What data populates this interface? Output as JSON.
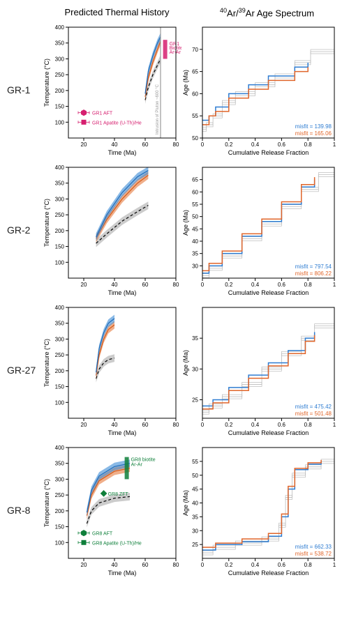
{
  "columns": {
    "left": "Predicted Thermal History",
    "right_html": "<sup>40</sup>Ar/<sup>39</sup>Ar Age Spectrum"
  },
  "rows": [
    "GR-1",
    "GR-2",
    "GR-27",
    "GR-8"
  ],
  "left_axis": {
    "xlabel": "Time (Ma)",
    "ylabel": "Temperature (°C)",
    "xlim": [
      10,
      80
    ],
    "ylim": [
      50,
      400
    ],
    "xticks": [
      20,
      40,
      60,
      80
    ],
    "yticks": [
      100,
      150,
      200,
      250,
      300,
      350,
      400
    ]
  },
  "right_axis": {
    "xlabel": "Cumulative Release Fraction",
    "xlim": [
      0,
      1
    ],
    "xticks": [
      0,
      0.2,
      0.4,
      0.6,
      0.8,
      1
    ]
  },
  "samples": {
    "GR-1": {
      "right_ylim": [
        50,
        75
      ],
      "right_yticks": [
        50,
        55,
        60,
        65,
        70
      ],
      "misfit_blue": "misfit = 139.98",
      "misfit_orange": "misfit = 165.06",
      "thermal": {
        "blue": [
          [
            60,
            190
          ],
          [
            62,
            260
          ],
          [
            65,
            310
          ],
          [
            68,
            350
          ],
          [
            70,
            370
          ]
        ],
        "orange": [
          [
            60,
            180
          ],
          [
            62,
            240
          ],
          [
            65,
            290
          ],
          [
            68,
            330
          ],
          [
            70,
            355
          ]
        ],
        "grey": [
          [
            60,
            170
          ],
          [
            62,
            210
          ],
          [
            65,
            250
          ],
          [
            68,
            280
          ],
          [
            70,
            300
          ]
        ]
      },
      "intrusion": {
        "x": 70,
        "label": "Intrusion of Pluton ~600 °C"
      },
      "gr1_bar": {
        "x": 73,
        "y0": 300,
        "y1": 360,
        "label": "GR1 Biotite Ar-Ar"
      },
      "legend_pink": [
        {
          "marker": "hex",
          "x": 20,
          "y": 130,
          "label": "GR1 AFT"
        },
        {
          "marker": "sq",
          "x": 20,
          "y": 100,
          "label": "GR1 Apatite (U-Th)/He"
        }
      ],
      "steps": {
        "blue": [
          [
            0,
            54
          ],
          [
            0.05,
            55
          ],
          [
            0.1,
            57
          ],
          [
            0.2,
            60
          ],
          [
            0.35,
            62
          ],
          [
            0.5,
            64
          ],
          [
            0.7,
            66
          ],
          [
            0.8,
            67
          ]
        ],
        "orange": [
          [
            0,
            53
          ],
          [
            0.05,
            55
          ],
          [
            0.1,
            56
          ],
          [
            0.2,
            59
          ],
          [
            0.35,
            61
          ],
          [
            0.5,
            63
          ],
          [
            0.7,
            65
          ],
          [
            0.8,
            66
          ]
        ],
        "grey": [
          [
            0,
            52
          ],
          [
            0.03,
            53
          ],
          [
            0.08,
            55
          ],
          [
            0.15,
            58
          ],
          [
            0.25,
            60
          ],
          [
            0.4,
            62
          ],
          [
            0.55,
            64
          ],
          [
            0.7,
            67
          ],
          [
            0.82,
            69.5
          ],
          [
            1,
            69.5
          ]
        ]
      }
    },
    "GR-2": {
      "right_ylim": [
        25,
        70
      ],
      "right_yticks": [
        30,
        35,
        40,
        45,
        50,
        55,
        60,
        65
      ],
      "misfit_blue": "misfit = 797.54",
      "misfit_orange": "misfit = 806.22",
      "thermal": {
        "blue": [
          [
            28,
            180
          ],
          [
            35,
            250
          ],
          [
            45,
            320
          ],
          [
            55,
            370
          ],
          [
            62,
            390
          ]
        ],
        "orange": [
          [
            28,
            175
          ],
          [
            35,
            235
          ],
          [
            45,
            300
          ],
          [
            55,
            350
          ],
          [
            62,
            375
          ]
        ],
        "grey": [
          [
            28,
            160
          ],
          [
            35,
            190
          ],
          [
            45,
            230
          ],
          [
            55,
            260
          ],
          [
            62,
            280
          ]
        ]
      },
      "steps": {
        "blue": [
          [
            0,
            27
          ],
          [
            0.05,
            30
          ],
          [
            0.15,
            35
          ],
          [
            0.3,
            42
          ],
          [
            0.45,
            48
          ],
          [
            0.6,
            55
          ],
          [
            0.75,
            62
          ],
          [
            0.85,
            65
          ]
        ],
        "orange": [
          [
            0,
            28
          ],
          [
            0.05,
            31
          ],
          [
            0.15,
            36
          ],
          [
            0.3,
            43
          ],
          [
            0.45,
            49
          ],
          [
            0.6,
            56
          ],
          [
            0.75,
            63
          ],
          [
            0.85,
            66
          ]
        ],
        "grey": [
          [
            0,
            26
          ],
          [
            0.05,
            29
          ],
          [
            0.15,
            34
          ],
          [
            0.3,
            41
          ],
          [
            0.45,
            47
          ],
          [
            0.6,
            54
          ],
          [
            0.75,
            61
          ],
          [
            0.88,
            67
          ],
          [
            1,
            67
          ]
        ]
      }
    },
    "GR-27": {
      "right_ylim": [
        22,
        40
      ],
      "right_yticks": [
        25,
        30,
        35
      ],
      "misfit_blue": "misfit = 475.42",
      "misfit_orange": "misfit = 501.48",
      "thermal": {
        "blue": [
          [
            28,
            195
          ],
          [
            30,
            270
          ],
          [
            33,
            320
          ],
          [
            36,
            350
          ],
          [
            40,
            365
          ]
        ],
        "orange": [
          [
            28,
            185
          ],
          [
            30,
            250
          ],
          [
            33,
            300
          ],
          [
            36,
            330
          ],
          [
            40,
            345
          ]
        ],
        "grey": [
          [
            28,
            175
          ],
          [
            30,
            205
          ],
          [
            33,
            225
          ],
          [
            36,
            235
          ],
          [
            40,
            240
          ]
        ]
      },
      "steps": {
        "blue": [
          [
            0,
            24
          ],
          [
            0.08,
            25
          ],
          [
            0.2,
            27
          ],
          [
            0.35,
            29
          ],
          [
            0.5,
            31
          ],
          [
            0.65,
            33
          ],
          [
            0.78,
            35
          ],
          [
            0.85,
            36
          ]
        ],
        "orange": [
          [
            0,
            23.5
          ],
          [
            0.08,
            24.5
          ],
          [
            0.2,
            26.5
          ],
          [
            0.35,
            28.5
          ],
          [
            0.5,
            30.5
          ],
          [
            0.65,
            32.5
          ],
          [
            0.78,
            34.5
          ],
          [
            0.85,
            35.5
          ]
        ],
        "grey": [
          [
            0,
            23
          ],
          [
            0.05,
            24
          ],
          [
            0.15,
            25.5
          ],
          [
            0.3,
            27.5
          ],
          [
            0.45,
            30
          ],
          [
            0.6,
            32.5
          ],
          [
            0.75,
            35
          ],
          [
            0.85,
            37
          ],
          [
            1,
            38
          ]
        ]
      }
    },
    "GR-8": {
      "right_ylim": [
        20,
        60
      ],
      "right_yticks": [
        25,
        30,
        35,
        40,
        45,
        50,
        55
      ],
      "misfit_blue": "misfit = 662.33",
      "misfit_orange": "misfit = 538.72",
      "thermal": {
        "blue": [
          [
            22,
            195
          ],
          [
            25,
            265
          ],
          [
            30,
            310
          ],
          [
            40,
            340
          ],
          [
            50,
            350
          ]
        ],
        "orange": [
          [
            22,
            185
          ],
          [
            25,
            250
          ],
          [
            30,
            295
          ],
          [
            40,
            325
          ],
          [
            50,
            335
          ]
        ],
        "grey": [
          [
            22,
            160
          ],
          [
            25,
            200
          ],
          [
            30,
            225
          ],
          [
            40,
            240
          ],
          [
            50,
            245
          ]
        ]
      },
      "gr8_bar": {
        "x": 48,
        "y0": 300,
        "y1": 370,
        "label": "GR8 biotite Ar-Ar"
      },
      "gr8_zft": {
        "x": 33,
        "y": 255,
        "label": "GR8 ZFT"
      },
      "legend_green": [
        {
          "marker": "hex",
          "x": 20,
          "y": 130,
          "label": "GR8 AFT"
        },
        {
          "marker": "sq",
          "x": 20,
          "y": 100,
          "label": "GR8 Apatite (U-Th)/He"
        }
      ],
      "steps": {
        "blue": [
          [
            0,
            23
          ],
          [
            0.1,
            25
          ],
          [
            0.3,
            26
          ],
          [
            0.5,
            28
          ],
          [
            0.6,
            35
          ],
          [
            0.65,
            45
          ],
          [
            0.7,
            52
          ],
          [
            0.8,
            54
          ],
          [
            0.9,
            55
          ]
        ],
        "orange": [
          [
            0,
            24
          ],
          [
            0.1,
            25.5
          ],
          [
            0.3,
            27
          ],
          [
            0.5,
            29
          ],
          [
            0.6,
            36
          ],
          [
            0.65,
            46
          ],
          [
            0.7,
            52.5
          ],
          [
            0.8,
            54.5
          ],
          [
            0.9,
            55.5
          ]
        ],
        "grey": [
          [
            0,
            22
          ],
          [
            0.08,
            24
          ],
          [
            0.25,
            25.5
          ],
          [
            0.45,
            27
          ],
          [
            0.58,
            32
          ],
          [
            0.63,
            42
          ],
          [
            0.68,
            50
          ],
          [
            0.78,
            53
          ],
          [
            0.9,
            55
          ],
          [
            1,
            55
          ]
        ]
      }
    }
  },
  "colors": {
    "blue": "#3a8ad6",
    "orange": "#e67a3c",
    "grey": "#999999",
    "pink": "#d61f6f",
    "green": "#0e7f3a",
    "misfit_blue": "#2e7cd1",
    "misfit_orange": "#e0652a"
  },
  "style": {
    "band_opacity": 0.6,
    "tick_fontsize": 8,
    "axis_fontsize": 9,
    "misfit_fontsize": 8,
    "legend_fontsize": 7
  }
}
